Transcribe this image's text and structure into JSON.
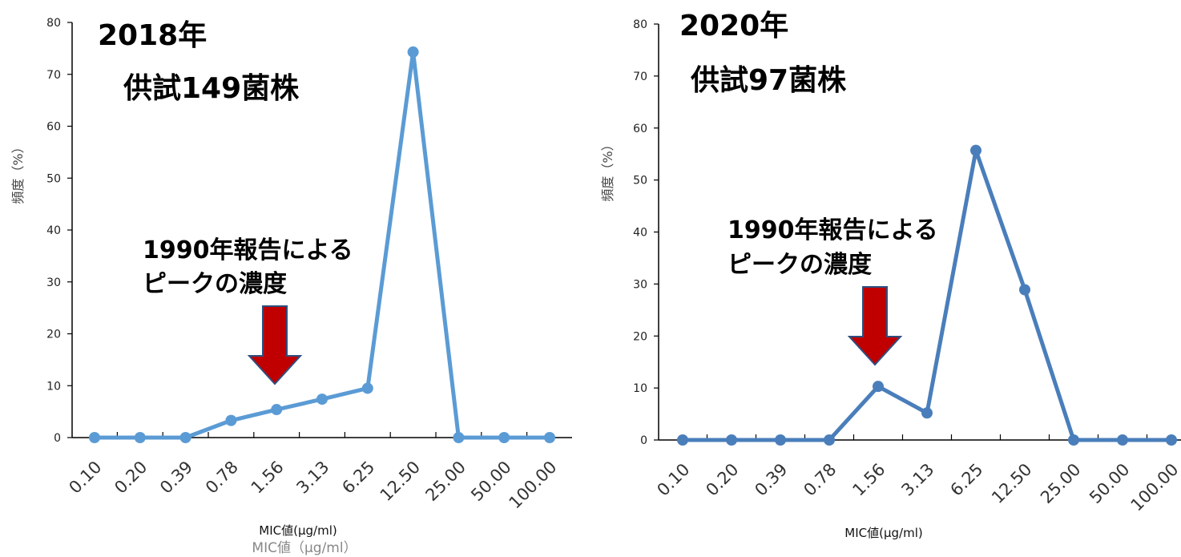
{
  "chart_data": [
    {
      "type": "line",
      "title": "2018年",
      "subtitle": "供試149菌株",
      "xlabel": "MIC値(μg/ml)",
      "xlabel_ghost": "MIC値（μg/ml）",
      "ylabel": "頻度（%）",
      "ylim": [
        0,
        80
      ],
      "yticks": [
        "0",
        "10",
        "20",
        "30",
        "40",
        "50",
        "60",
        "70",
        "80"
      ],
      "categories": [
        "0.10",
        "0.20",
        "0.39",
        "0.78",
        "1.56",
        "3.13",
        "6.25",
        "12.50",
        "25.00",
        "50.00",
        "100.00"
      ],
      "values": [
        0,
        0,
        0,
        3.3,
        5.4,
        7.4,
        9.5,
        74.3,
        0,
        0,
        0
      ],
      "color": "#5B9BD5",
      "annotation": {
        "lines": [
          "1990年報告による",
          "ピークの濃度"
        ],
        "arrow_category": "1.56"
      }
    },
    {
      "type": "line",
      "title": "2020年",
      "subtitle": "供試97菌株",
      "xlabel": "MIC値(μg/ml)",
      "ylabel": "頻度（%）",
      "ylim": [
        0,
        80
      ],
      "yticks": [
        "0",
        "10",
        "20",
        "30",
        "40",
        "50",
        "60",
        "70",
        "80"
      ],
      "categories": [
        "0.10",
        "0.20",
        "0.39",
        "0.78",
        "1.56",
        "3.13",
        "6.25",
        "12.50",
        "25.00",
        "50.00",
        "100.00"
      ],
      "values": [
        0,
        0,
        0,
        0,
        10.3,
        5.2,
        55.7,
        28.9,
        0,
        0,
        0
      ],
      "color": "#4A7EBB",
      "annotation": {
        "lines": [
          "1990年報告による",
          "ピークの濃度"
        ],
        "arrow_category": "1.56"
      }
    }
  ],
  "colors": {
    "arrow_fill": "#C00000",
    "arrow_stroke": "#2F4F7F",
    "axis": "#000000"
  }
}
